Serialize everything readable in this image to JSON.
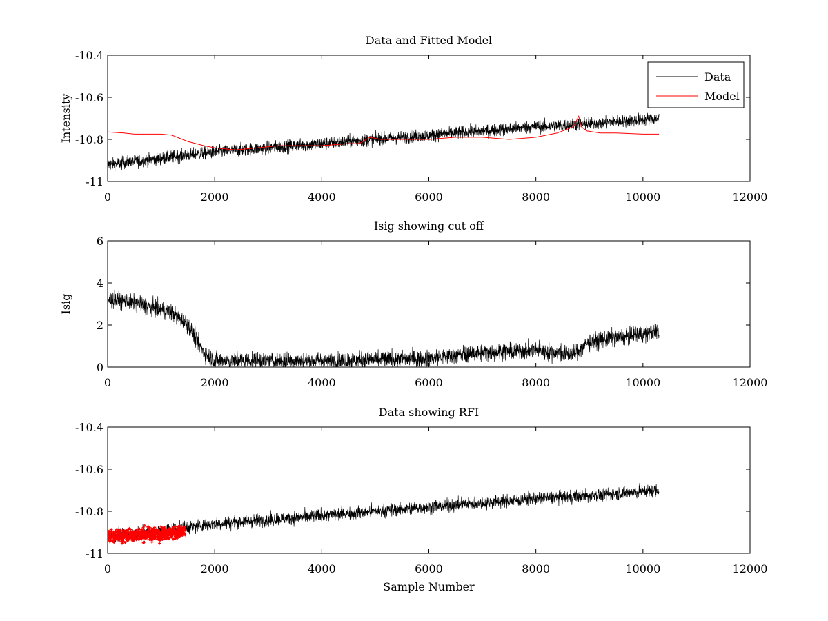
{
  "chart_data": [
    {
      "type": "line",
      "title": "Data and Fitted Model",
      "xlabel": "",
      "ylabel": "Intensity",
      "xlim": [
        0,
        12000
      ],
      "ylim": [
        -11,
        -10.4
      ],
      "xticks": [
        0,
        2000,
        4000,
        6000,
        8000,
        10000,
        12000
      ],
      "xtick_labels": [
        "0",
        "2000",
        "4000",
        "6000",
        "8000",
        "10000",
        "12000"
      ],
      "yticks": [
        -11,
        -10.8,
        -10.6,
        -10.4
      ],
      "ytick_labels": [
        "-11",
        "-10.8",
        "-10.6",
        "-10.4"
      ],
      "legend": {
        "position": "top-right",
        "entries": [
          "Data",
          "Model"
        ]
      },
      "series": [
        {
          "name": "Data",
          "color": "#000000",
          "style": "noisy-line",
          "x": [
            0,
            2000,
            4000,
            6000,
            8000,
            8800,
            10300
          ],
          "y": [
            -10.92,
            -10.86,
            -10.82,
            -10.78,
            -10.74,
            -10.73,
            -10.7
          ],
          "noise": 0.03
        },
        {
          "name": "Model",
          "color": "#ff0000",
          "style": "line",
          "x": [
            0,
            300,
            500,
            1000,
            1200,
            1500,
            1800,
            2000,
            2400,
            2800,
            3200,
            3600,
            4000,
            4500,
            4700,
            4900,
            5100,
            5500,
            6000,
            6500,
            7000,
            7500,
            8000,
            8400,
            8700,
            8800,
            8850,
            8950,
            9200,
            9500,
            10000,
            10300
          ],
          "y": [
            -10.765,
            -10.77,
            -10.775,
            -10.775,
            -10.78,
            -10.81,
            -10.83,
            -10.84,
            -10.85,
            -10.84,
            -10.83,
            -10.83,
            -10.83,
            -10.82,
            -10.82,
            -10.79,
            -10.8,
            -10.8,
            -10.8,
            -10.79,
            -10.79,
            -10.8,
            -10.79,
            -10.77,
            -10.74,
            -10.69,
            -10.74,
            -10.76,
            -10.77,
            -10.77,
            -10.775,
            -10.775
          ]
        }
      ]
    },
    {
      "type": "line",
      "title": "Isig showing cut off",
      "xlabel": "",
      "ylabel": "Isig",
      "xlim": [
        0,
        12000
      ],
      "ylim": [
        0,
        6
      ],
      "xticks": [
        0,
        2000,
        4000,
        6000,
        8000,
        10000,
        12000
      ],
      "xtick_labels": [
        "0",
        "2000",
        "4000",
        "6000",
        "8000",
        "10000",
        "12000"
      ],
      "yticks": [
        0,
        2,
        4,
        6
      ],
      "ytick_labels": [
        "0",
        "2",
        "4",
        "6"
      ],
      "series": [
        {
          "name": "Isig",
          "color": "#000000",
          "style": "noisy-line",
          "x": [
            0,
            400,
            1200,
            1500,
            1800,
            2000,
            3000,
            4000,
            5000,
            6000,
            7000,
            8000,
            8700,
            9000,
            9500,
            10300
          ],
          "y": [
            3.2,
            3.1,
            2.6,
            2.0,
            0.7,
            0.3,
            0.3,
            0.3,
            0.35,
            0.4,
            0.7,
            0.8,
            0.6,
            1.2,
            1.4,
            1.7
          ],
          "noise": 0.4,
          "floor": 0
        },
        {
          "name": "cut off",
          "color": "#ff0000",
          "style": "line",
          "x": [
            0,
            10300
          ],
          "y": [
            3,
            3
          ]
        }
      ]
    },
    {
      "type": "line",
      "title": "Data showing RFI",
      "xlabel": "Sample Number",
      "ylabel": "",
      "xlim": [
        0,
        12000
      ],
      "ylim": [
        -11,
        -10.4
      ],
      "xticks": [
        0,
        2000,
        4000,
        6000,
        8000,
        10000,
        12000
      ],
      "xtick_labels": [
        "0",
        "2000",
        "4000",
        "6000",
        "8000",
        "10000",
        "12000"
      ],
      "yticks": [
        -11,
        -10.8,
        -10.6,
        -10.4
      ],
      "ytick_labels": [
        "-11",
        "-10.8",
        "-10.6",
        "-10.4"
      ],
      "series": [
        {
          "name": "Data",
          "color": "#000000",
          "style": "noisy-line",
          "x": [
            0,
            2000,
            4000,
            6000,
            8000,
            8800,
            10300
          ],
          "y": [
            -10.92,
            -10.86,
            -10.82,
            -10.78,
            -10.74,
            -10.73,
            -10.7
          ],
          "noise": 0.03
        },
        {
          "name": "RFI",
          "color": "#ff0000",
          "style": "noisy-markers",
          "x": [
            0,
            1450
          ],
          "y": [
            -10.92,
            -10.9
          ],
          "noise": 0.03
        }
      ]
    }
  ]
}
